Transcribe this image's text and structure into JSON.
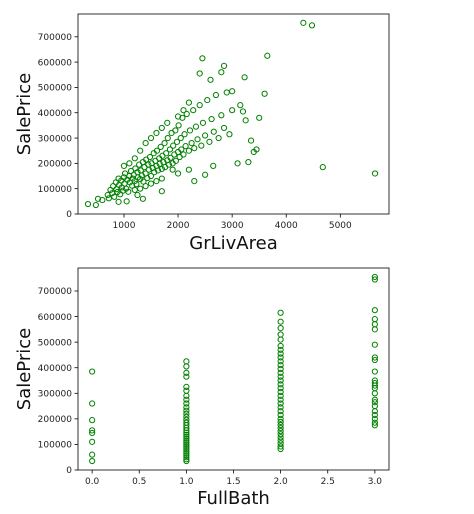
{
  "chart_data": [
    {
      "type": "scatter",
      "xlabel": "GrLivArea",
      "ylabel": "SalePrice",
      "xlim": [
        150,
        5900
      ],
      "ylim": [
        0,
        790000
      ],
      "xticks": [
        1000,
        2000,
        3000,
        4000,
        5000
      ],
      "xtick_labels": [
        "1000",
        "2000",
        "3000",
        "4000",
        "5000"
      ],
      "yticks": [
        0,
        100000,
        200000,
        300000,
        400000,
        500000,
        600000,
        700000
      ],
      "ytick_labels": [
        "0",
        "100000",
        "200000",
        "300000",
        "400000",
        "500000",
        "600000",
        "700000"
      ],
      "marker": "hollow-circle",
      "color": "#008000",
      "grid": false,
      "points": [
        [
          334,
          39300
        ],
        [
          480,
          35300
        ],
        [
          520,
          60000
        ],
        [
          600,
          55000
        ],
        [
          700,
          75000
        ],
        [
          720,
          62000
        ],
        [
          750,
          95000
        ],
        [
          780,
          82000
        ],
        [
          800,
          110000
        ],
        [
          820,
          68000
        ],
        [
          850,
          125000
        ],
        [
          860,
          98000
        ],
        [
          880,
          87000
        ],
        [
          900,
          140000
        ],
        [
          910,
          115000
        ],
        [
          930,
          78000
        ],
        [
          950,
          132000
        ],
        [
          960,
          105000
        ],
        [
          980,
          92000
        ],
        [
          1000,
          145000
        ],
        [
          1010,
          120000
        ],
        [
          1020,
          160000
        ],
        [
          1040,
          100000
        ],
        [
          1060,
          135000
        ],
        [
          1080,
          88000
        ],
        [
          1100,
          150000
        ],
        [
          1110,
          125000
        ],
        [
          1130,
          170000
        ],
        [
          1150,
          112000
        ],
        [
          1160,
          140000
        ],
        [
          1180,
          155000
        ],
        [
          1200,
          130000
        ],
        [
          1210,
          180000
        ],
        [
          1230,
          118000
        ],
        [
          1250,
          165000
        ],
        [
          1260,
          145000
        ],
        [
          1280,
          195000
        ],
        [
          1300,
          138000
        ],
        [
          1310,
          172000
        ],
        [
          1330,
          152000
        ],
        [
          1350,
          205000
        ],
        [
          1360,
          128000
        ],
        [
          1380,
          185000
        ],
        [
          1400,
          160000
        ],
        [
          1410,
          215000
        ],
        [
          1430,
          142000
        ],
        [
          1450,
          195000
        ],
        [
          1460,
          175000
        ],
        [
          1480,
          225000
        ],
        [
          1500,
          150000
        ],
        [
          1510,
          200000
        ],
        [
          1530,
          182000
        ],
        [
          1550,
          240000
        ],
        [
          1560,
          165000
        ],
        [
          1580,
          210000
        ],
        [
          1600,
          190000
        ],
        [
          1610,
          250000
        ],
        [
          1630,
          172000
        ],
        [
          1650,
          220000
        ],
        [
          1660,
          198000
        ],
        [
          1680,
          265000
        ],
        [
          1700,
          178000
        ],
        [
          1710,
          230000
        ],
        [
          1730,
          205000
        ],
        [
          1750,
          280000
        ],
        [
          1760,
          185000
        ],
        [
          1780,
          240000
        ],
        [
          1800,
          212000
        ],
        [
          1810,
          300000
        ],
        [
          1830,
          195000
        ],
        [
          1850,
          255000
        ],
        [
          1860,
          222000
        ],
        [
          1880,
          320000
        ],
        [
          1900,
          200000
        ],
        [
          1910,
          270000
        ],
        [
          1930,
          235000
        ],
        [
          1950,
          330000
        ],
        [
          1960,
          210000
        ],
        [
          1980,
          285000
        ],
        [
          2000,
          245000
        ],
        [
          2010,
          350000
        ],
        [
          2030,
          225000
        ],
        [
          2050,
          300000
        ],
        [
          2060,
          255000
        ],
        [
          2080,
          380000
        ],
        [
          2100,
          235000
        ],
        [
          2120,
          315000
        ],
        [
          2140,
          268000
        ],
        [
          2160,
          395000
        ],
        [
          2200,
          250000
        ],
        [
          2220,
          330000
        ],
        [
          2250,
          280000
        ],
        [
          2280,
          410000
        ],
        [
          2300,
          260000
        ],
        [
          2330,
          345000
        ],
        [
          2360,
          295000
        ],
        [
          2400,
          430000
        ],
        [
          2430,
          270000
        ],
        [
          2460,
          360000
        ],
        [
          2500,
          310000
        ],
        [
          2540,
          450000
        ],
        [
          2580,
          285000
        ],
        [
          2620,
          375000
        ],
        [
          2660,
          325000
        ],
        [
          2700,
          470000
        ],
        [
          2750,
          300000
        ],
        [
          2800,
          390000
        ],
        [
          2850,
          340000
        ],
        [
          2900,
          480000
        ],
        [
          2950,
          315000
        ],
        [
          3000,
          410000
        ],
        [
          1200,
          220000
        ],
        [
          1300,
          250000
        ],
        [
          1400,
          280000
        ],
        [
          1100,
          200000
        ],
        [
          1500,
          300000
        ],
        [
          1600,
          320000
        ],
        [
          1000,
          190000
        ],
        [
          1700,
          340000
        ],
        [
          1800,
          360000
        ],
        [
          2000,
          385000
        ],
        [
          2100,
          410000
        ],
        [
          2200,
          440000
        ],
        [
          1900,
          175000
        ],
        [
          2000,
          160000
        ],
        [
          2200,
          175000
        ],
        [
          1500,
          120000
        ],
        [
          1600,
          130000
        ],
        [
          1700,
          140000
        ],
        [
          1400,
          110000
        ],
        [
          1300,
          100000
        ],
        [
          1200,
          95000
        ],
        [
          2400,
          555000
        ],
        [
          2450,
          615000
        ],
        [
          2600,
          530000
        ],
        [
          2800,
          560000
        ],
        [
          2850,
          585000
        ],
        [
          3000,
          485000
        ],
        [
          3150,
          430000
        ],
        [
          3200,
          405000
        ],
        [
          3250,
          370000
        ],
        [
          3350,
          290000
        ],
        [
          3450,
          255000
        ],
        [
          3500,
          380000
        ],
        [
          3600,
          475000
        ],
        [
          3650,
          625000
        ],
        [
          3100,
          200000
        ],
        [
          3300,
          205000
        ],
        [
          3400,
          245000
        ],
        [
          3230,
          540000
        ],
        [
          4316,
          755000
        ],
        [
          4476,
          745000
        ],
        [
          4676,
          185000
        ],
        [
          5642,
          160000
        ],
        [
          1350,
          60000
        ],
        [
          1250,
          75000
        ],
        [
          1050,
          50000
        ],
        [
          900,
          48000
        ],
        [
          1700,
          90000
        ],
        [
          2300,
          130000
        ],
        [
          2500,
          155000
        ],
        [
          2650,
          190000
        ]
      ]
    },
    {
      "type": "scatter",
      "xlabel": "FullBath",
      "ylabel": "SalePrice",
      "xlim": [
        -0.15,
        3.15
      ],
      "ylim": [
        0,
        790000
      ],
      "xticks": [
        0.0,
        0.5,
        1.0,
        1.5,
        2.0,
        2.5,
        3.0
      ],
      "xtick_labels": [
        "0.0",
        "0.5",
        "1.0",
        "1.5",
        "2.0",
        "2.5",
        "3.0"
      ],
      "yticks": [
        0,
        100000,
        200000,
        300000,
        400000,
        500000,
        600000,
        700000
      ],
      "ytick_labels": [
        "0",
        "100000",
        "200000",
        "300000",
        "400000",
        "500000",
        "600000",
        "700000"
      ],
      "marker": "hollow-circle",
      "color": "#008000",
      "grid": false,
      "points": [
        [
          0,
          385000
        ],
        [
          0,
          260000
        ],
        [
          0,
          195000
        ],
        [
          0,
          155000
        ],
        [
          0,
          145000
        ],
        [
          0,
          110000
        ],
        [
          0,
          60000
        ],
        [
          0,
          35000
        ],
        [
          1,
          425000
        ],
        [
          1,
          405000
        ],
        [
          1,
          380000
        ],
        [
          1,
          365000
        ],
        [
          1,
          325000
        ],
        [
          1,
          310000
        ],
        [
          1,
          290000
        ],
        [
          1,
          275000
        ],
        [
          1,
          260000
        ],
        [
          1,
          245000
        ],
        [
          1,
          232000
        ],
        [
          1,
          220000
        ],
        [
          1,
          208000
        ],
        [
          1,
          196000
        ],
        [
          1,
          185000
        ],
        [
          1,
          175000
        ],
        [
          1,
          165000
        ],
        [
          1,
          155000
        ],
        [
          1,
          146000
        ],
        [
          1,
          138000
        ],
        [
          1,
          130000
        ],
        [
          1,
          122000
        ],
        [
          1,
          114000
        ],
        [
          1,
          106000
        ],
        [
          1,
          98000
        ],
        [
          1,
          90000
        ],
        [
          1,
          82000
        ],
        [
          1,
          74000
        ],
        [
          1,
          66000
        ],
        [
          1,
          58000
        ],
        [
          1,
          50000
        ],
        [
          1,
          42000
        ],
        [
          1,
          35000
        ],
        [
          2,
          615000
        ],
        [
          2,
          580000
        ],
        [
          2,
          555000
        ],
        [
          2,
          530000
        ],
        [
          2,
          510000
        ],
        [
          2,
          485000
        ],
        [
          2,
          470000
        ],
        [
          2,
          455000
        ],
        [
          2,
          440000
        ],
        [
          2,
          425000
        ],
        [
          2,
          410000
        ],
        [
          2,
          395000
        ],
        [
          2,
          380000
        ],
        [
          2,
          365000
        ],
        [
          2,
          350000
        ],
        [
          2,
          335000
        ],
        [
          2,
          320000
        ],
        [
          2,
          305000
        ],
        [
          2,
          290000
        ],
        [
          2,
          275000
        ],
        [
          2,
          260000
        ],
        [
          2,
          245000
        ],
        [
          2,
          230000
        ],
        [
          2,
          215000
        ],
        [
          2,
          200000
        ],
        [
          2,
          188000
        ],
        [
          2,
          176000
        ],
        [
          2,
          164000
        ],
        [
          2,
          152000
        ],
        [
          2,
          140000
        ],
        [
          2,
          128000
        ],
        [
          2,
          116000
        ],
        [
          2,
          104000
        ],
        [
          2,
          92000
        ],
        [
          2,
          82000
        ],
        [
          3,
          755000
        ],
        [
          3,
          745000
        ],
        [
          3,
          625000
        ],
        [
          3,
          590000
        ],
        [
          3,
          570000
        ],
        [
          3,
          550000
        ],
        [
          3,
          490000
        ],
        [
          3,
          440000
        ],
        [
          3,
          430000
        ],
        [
          3,
          385000
        ],
        [
          3,
          350000
        ],
        [
          3,
          340000
        ],
        [
          3,
          330000
        ],
        [
          3,
          320000
        ],
        [
          3,
          300000
        ],
        [
          3,
          275000
        ],
        [
          3,
          265000
        ],
        [
          3,
          250000
        ],
        [
          3,
          230000
        ],
        [
          3,
          215000
        ],
        [
          3,
          200000
        ],
        [
          3,
          185000
        ],
        [
          3,
          175000
        ]
      ]
    }
  ]
}
